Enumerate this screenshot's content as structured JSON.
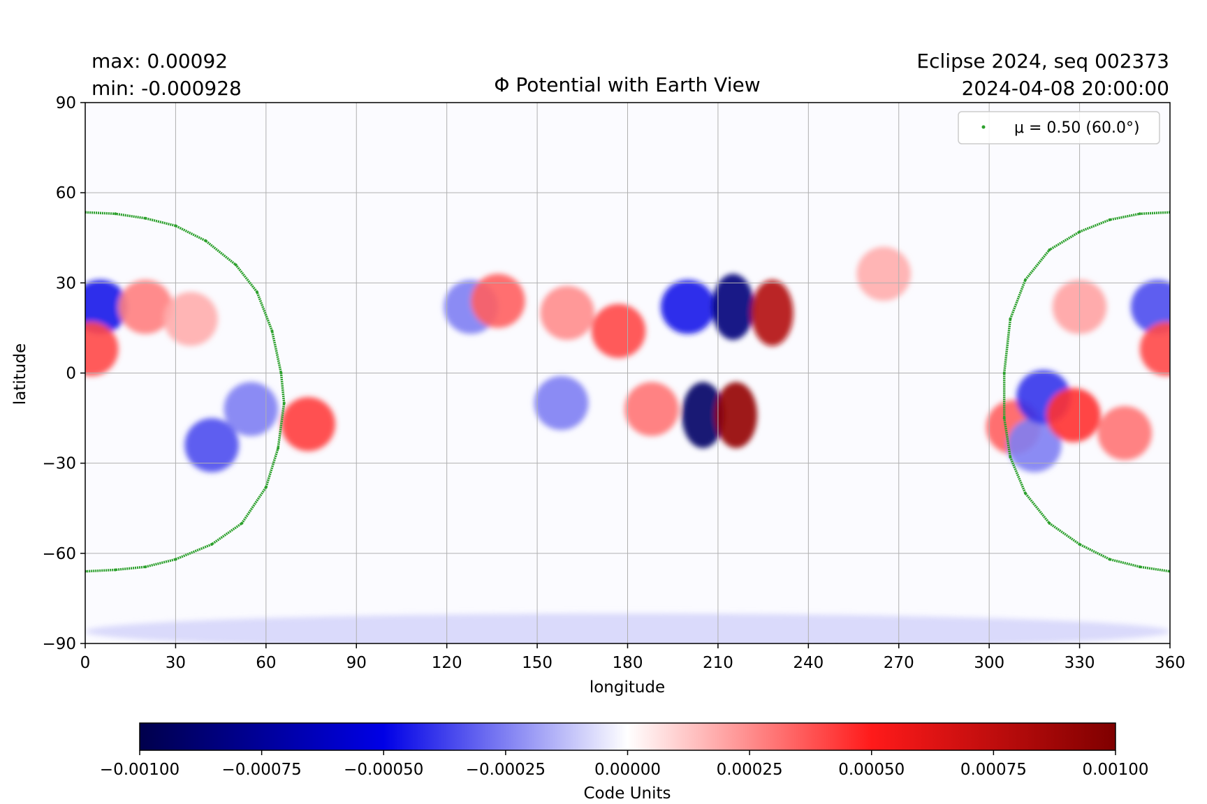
{
  "header": {
    "max_line": "max:  0.00092",
    "min_line": "min:  -0.000928",
    "title": "Φ Potential with Earth View",
    "event_line": "Eclipse 2024, seq 002373",
    "datetime_line": "2024-04-08 20:00:00"
  },
  "legend": {
    "label": "μ = 0.50 (60.0°)",
    "marker_color": "#2ca02c"
  },
  "colorbar": {
    "label": "Code Units",
    "ticks": [
      "−0.00100",
      "−0.00075",
      "−0.00050",
      "−0.00025",
      "0.00000",
      "0.00025",
      "0.00050",
      "0.00075",
      "0.00100"
    ],
    "range": [
      -0.001,
      0.001
    ],
    "colormap": "seismic"
  },
  "colors": {
    "negative": "#0000ff",
    "positive": "#ff0000",
    "negative_dark": "#00004c",
    "positive_dark": "#7f0000",
    "limb_curve": "#2ca02c",
    "grid": "#b0b0b0"
  },
  "chart_data": {
    "type": "heatmap",
    "title": "Φ Potential with Earth View",
    "xlabel": "longitude",
    "ylabel": "latitude",
    "xlim": [
      0,
      360
    ],
    "ylim": [
      -90,
      90
    ],
    "xticks": [
      0,
      30,
      60,
      90,
      120,
      150,
      180,
      210,
      240,
      270,
      300,
      330,
      360
    ],
    "yticks": [
      -90,
      -60,
      -30,
      0,
      30,
      60,
      90
    ],
    "grid": true,
    "legend_position": "top-right",
    "value_max": 0.00092,
    "value_min": -0.000928,
    "features": [
      {
        "lon": 5,
        "lat": 22,
        "value": -0.00045
      },
      {
        "lon": 2,
        "lat": 8,
        "value": 0.0004
      },
      {
        "lon": 20,
        "lat": 22,
        "value": 0.00028
      },
      {
        "lon": 35,
        "lat": 18,
        "value": 0.00018
      },
      {
        "lon": 42,
        "lat": -24,
        "value": -0.00035
      },
      {
        "lon": 55,
        "lat": -12,
        "value": -0.00025
      },
      {
        "lon": 74,
        "lat": -17,
        "value": 0.00042
      },
      {
        "lon": 128,
        "lat": 22,
        "value": -0.00025
      },
      {
        "lon": 137,
        "lat": 24,
        "value": 0.00035
      },
      {
        "lon": 160,
        "lat": 20,
        "value": 0.00025
      },
      {
        "lon": 177,
        "lat": 14,
        "value": 0.0004
      },
      {
        "lon": 158,
        "lat": -10,
        "value": -0.00025
      },
      {
        "lon": 200,
        "lat": 22,
        "value": -0.00045
      },
      {
        "lon": 215,
        "lat": 22,
        "value": -0.00085
      },
      {
        "lon": 228,
        "lat": 20,
        "value": 0.0008
      },
      {
        "lon": 265,
        "lat": 33,
        "value": 0.00018
      },
      {
        "lon": 188,
        "lat": -12,
        "value": 0.0003
      },
      {
        "lon": 205,
        "lat": -14,
        "value": -0.00092
      },
      {
        "lon": 216,
        "lat": -14,
        "value": 0.00092
      },
      {
        "lon": 308,
        "lat": -18,
        "value": 0.00035
      },
      {
        "lon": 315,
        "lat": -24,
        "value": -0.00025
      },
      {
        "lon": 318,
        "lat": -8,
        "value": -0.0004
      },
      {
        "lon": 328,
        "lat": -14,
        "value": 0.00045
      },
      {
        "lon": 345,
        "lat": -20,
        "value": 0.0003
      },
      {
        "lon": 330,
        "lat": 22,
        "value": 0.0002
      },
      {
        "lon": 356,
        "lat": 22,
        "value": -0.00035
      },
      {
        "lon": 359,
        "lat": 8,
        "value": 0.0004
      },
      {
        "lon": 180,
        "lat": -86,
        "value": -8e-05
      }
    ],
    "series": [
      {
        "name": "μ = 0.50 (60.0°)",
        "type": "scatter",
        "color": "#2ca02c",
        "left_branch": [
          [
            0,
            53.5
          ],
          [
            10,
            53
          ],
          [
            20,
            51.5
          ],
          [
            30,
            49
          ],
          [
            40,
            44
          ],
          [
            50,
            36
          ],
          [
            57,
            27
          ],
          [
            62,
            14
          ],
          [
            65,
            0
          ],
          [
            66,
            -10
          ],
          [
            64,
            -25
          ],
          [
            60,
            -38
          ],
          [
            52,
            -50
          ],
          [
            42,
            -57
          ],
          [
            30,
            -62
          ],
          [
            20,
            -64.5
          ],
          [
            10,
            -65.5
          ],
          [
            0,
            -66
          ]
        ],
        "right_branch": [
          [
            360,
            53.5
          ],
          [
            350,
            53
          ],
          [
            340,
            51
          ],
          [
            330,
            47
          ],
          [
            320,
            41
          ],
          [
            312,
            31
          ],
          [
            307,
            18
          ],
          [
            305,
            0
          ],
          [
            305,
            -15
          ],
          [
            307,
            -28
          ],
          [
            312,
            -40
          ],
          [
            320,
            -50
          ],
          [
            330,
            -57
          ],
          [
            340,
            -62
          ],
          [
            350,
            -64.5
          ],
          [
            360,
            -66
          ]
        ]
      }
    ]
  }
}
